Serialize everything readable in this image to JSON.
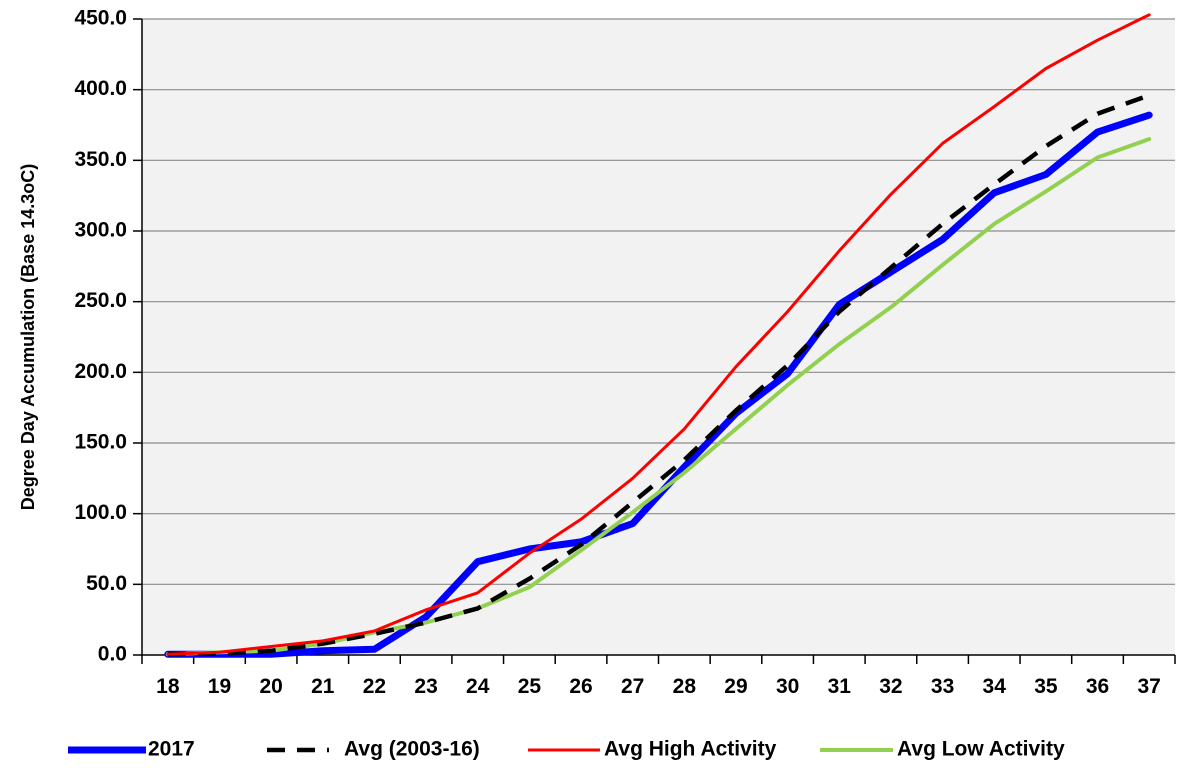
{
  "chart_data": {
    "type": "line",
    "title": "",
    "xlabel": "",
    "ylabel": "Degree Day Accumulation (Base 14.3oC)",
    "x": [
      18,
      19,
      20,
      21,
      22,
      23,
      24,
      25,
      26,
      27,
      28,
      29,
      30,
      31,
      32,
      33,
      34,
      35,
      36,
      37
    ],
    "x_tick_labels": [
      "18",
      "19",
      "20",
      "21",
      "22",
      "23",
      "24",
      "25",
      "26",
      "27",
      "28",
      "29",
      "30",
      "31",
      "32",
      "33",
      "34",
      "35",
      "36",
      "37"
    ],
    "ylim": [
      0,
      450
    ],
    "y_tick_labels": [
      "0.0",
      "50.0",
      "100.0",
      "150.0",
      "200.0",
      "250.0",
      "300.0",
      "350.0",
      "400.0",
      "450.0"
    ],
    "grid": true,
    "legend_position": "bottom",
    "series": [
      {
        "name": "2017",
        "color": "#0000ff",
        "style": "solid-thick",
        "values": [
          0.5,
          0.5,
          0.5,
          3,
          4,
          27,
          66,
          75,
          80,
          93,
          133,
          171,
          199,
          248,
          271,
          294,
          327,
          340,
          370,
          382
        ]
      },
      {
        "name": "Avg (2003-16)",
        "color": "#000000",
        "style": "dashed",
        "values": [
          0.5,
          1,
          3,
          8,
          15,
          23,
          33,
          54,
          78,
          108,
          138,
          173,
          205,
          243,
          274,
          305,
          333,
          360,
          383,
          396
        ]
      },
      {
        "name": "Avg High Activity",
        "color": "#ff0000",
        "style": "solid",
        "values": [
          0.5,
          2,
          6,
          10,
          17,
          32,
          44,
          72,
          96,
          125,
          160,
          204,
          243,
          286,
          326,
          362,
          388,
          415,
          435,
          453
        ]
      },
      {
        "name": "Avg Low Activity",
        "color": "#92d050",
        "style": "solid-medium",
        "values": [
          0.5,
          2,
          3,
          8,
          16,
          23,
          33,
          48,
          74,
          101,
          129,
          160,
          191,
          220,
          246,
          276,
          305,
          328,
          352,
          365
        ]
      }
    ]
  }
}
